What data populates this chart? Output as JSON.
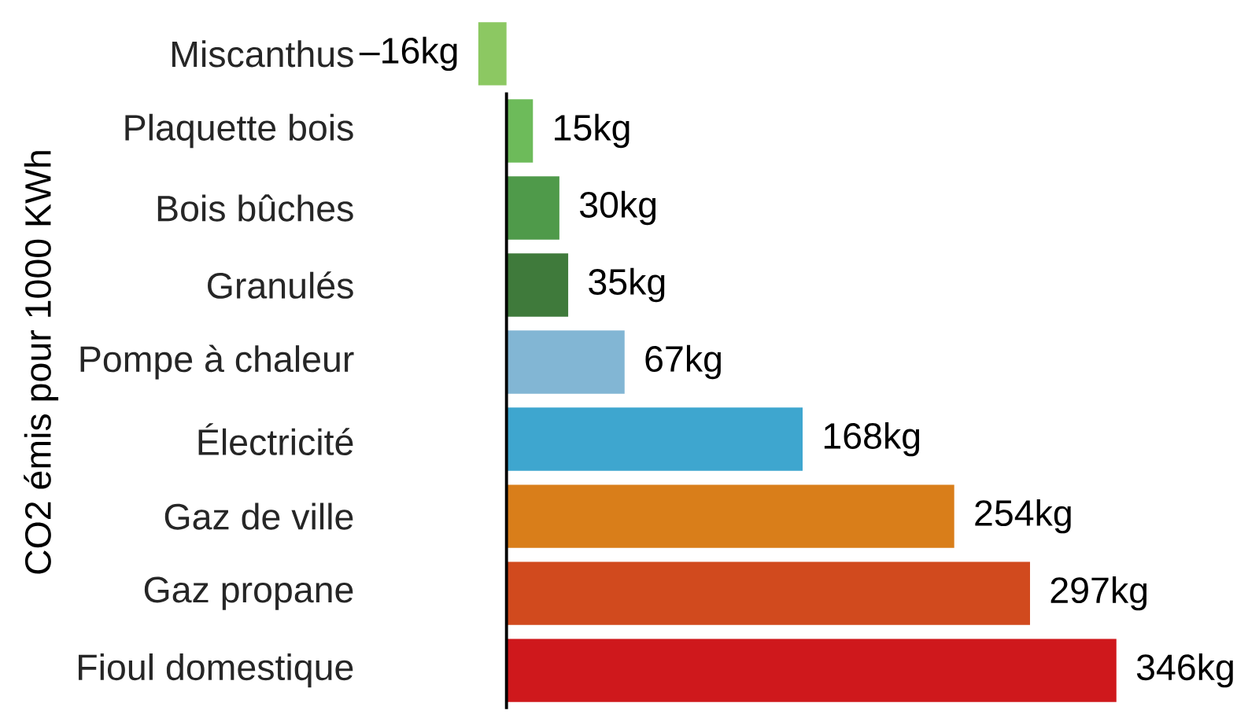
{
  "chart_data": {
    "type": "bar",
    "orientation": "horizontal",
    "ylabel": "CO2 émis pour 1000 KWh",
    "categories": [
      "Miscanthus",
      "Plaquette bois",
      "Bois bûches",
      "Granulés",
      "Pompe à chaleur",
      "Électricité",
      "Gaz de ville",
      "Gaz propane",
      "Fioul domestique"
    ],
    "values": [
      -16,
      15,
      30,
      35,
      67,
      168,
      254,
      297,
      346
    ],
    "value_labels": [
      "–16kg",
      "15kg",
      "30kg",
      "35kg",
      "67kg",
      "168kg",
      "254kg",
      "297kg",
      "346kg"
    ],
    "colors": [
      "#8cc862",
      "#6dbb5a",
      "#4f9a4a",
      "#3f7a3b",
      "#82b6d4",
      "#3ea6cf",
      "#d97e1a",
      "#d14a1e",
      "#cf181c"
    ]
  }
}
